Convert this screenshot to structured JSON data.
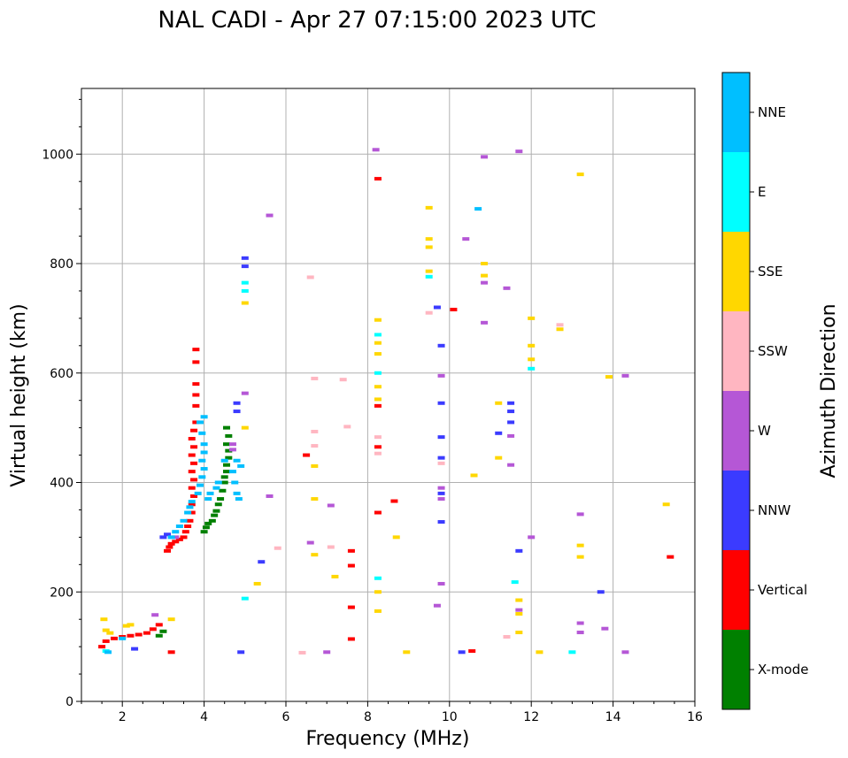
{
  "chart_data": {
    "type": "scatter",
    "title": "NAL CADI - Apr 27 07:15:00 2023 UTC",
    "xlabel": "Frequency (MHz)",
    "ylabel": "Virtual height (km)",
    "xlim": [
      1,
      16
    ],
    "ylim": [
      0,
      1120
    ],
    "xticks": [
      2,
      4,
      6,
      8,
      10,
      12,
      14,
      16
    ],
    "yticks": [
      0,
      200,
      400,
      600,
      800,
      1000
    ],
    "grid": true,
    "colorbar": {
      "label": "Azimuth Direction",
      "categories": [
        {
          "name": "X-mode",
          "color": "#008000"
        },
        {
          "name": "Vertical",
          "color": "#ff0000"
        },
        {
          "name": "NNW",
          "color": "#3b3bff"
        },
        {
          "name": "W",
          "color": "#b557d6"
        },
        {
          "name": "SSW",
          "color": "#ffb6c1"
        },
        {
          "name": "SSE",
          "color": "#ffd700"
        },
        {
          "name": "E",
          "color": "#00ffff"
        },
        {
          "name": "NNE",
          "color": "#00bfff"
        }
      ]
    },
    "series": [
      {
        "name": "X-mode",
        "points": [
          [
            2.9,
            120
          ],
          [
            3.0,
            128
          ],
          [
            4.0,
            310
          ],
          [
            4.05,
            318
          ],
          [
            4.1,
            325
          ],
          [
            4.2,
            330
          ],
          [
            4.25,
            340
          ],
          [
            4.3,
            348
          ],
          [
            4.35,
            360
          ],
          [
            4.4,
            370
          ],
          [
            4.45,
            385
          ],
          [
            4.5,
            400
          ],
          [
            4.5,
            410
          ],
          [
            4.55,
            420
          ],
          [
            4.55,
            432
          ],
          [
            4.6,
            445
          ],
          [
            4.6,
            458
          ],
          [
            4.55,
            470
          ],
          [
            4.6,
            485
          ],
          [
            4.55,
            500
          ]
        ]
      },
      {
        "name": "Vertical",
        "points": [
          [
            1.5,
            100
          ],
          [
            1.6,
            110
          ],
          [
            1.8,
            115
          ],
          [
            2.0,
            118
          ],
          [
            2.2,
            120
          ],
          [
            2.4,
            122
          ],
          [
            2.6,
            125
          ],
          [
            2.75,
            132
          ],
          [
            2.9,
            140
          ],
          [
            3.1,
            275
          ],
          [
            3.15,
            282
          ],
          [
            3.2,
            288
          ],
          [
            3.3,
            292
          ],
          [
            3.4,
            296
          ],
          [
            3.5,
            300
          ],
          [
            3.55,
            310
          ],
          [
            3.6,
            320
          ],
          [
            3.65,
            330
          ],
          [
            3.7,
            345
          ],
          [
            3.7,
            360
          ],
          [
            3.75,
            375
          ],
          [
            3.7,
            390
          ],
          [
            3.75,
            405
          ],
          [
            3.7,
            420
          ],
          [
            3.75,
            435
          ],
          [
            3.7,
            450
          ],
          [
            3.75,
            465
          ],
          [
            3.7,
            480
          ],
          [
            3.75,
            495
          ],
          [
            3.8,
            510
          ],
          [
            3.8,
            540
          ],
          [
            3.8,
            560
          ],
          [
            3.8,
            580
          ],
          [
            3.8,
            620
          ],
          [
            3.8,
            643
          ],
          [
            3.2,
            90
          ],
          [
            6.5,
            450
          ],
          [
            7.6,
            275
          ],
          [
            7.6,
            248
          ],
          [
            7.6,
            172
          ],
          [
            7.6,
            114
          ],
          [
            8.25,
            955
          ],
          [
            8.25,
            540
          ],
          [
            8.25,
            465
          ],
          [
            8.25,
            345
          ],
          [
            8.65,
            366
          ],
          [
            10.1,
            716
          ],
          [
            10.55,
            92
          ],
          [
            15.4,
            264
          ]
        ]
      },
      {
        "name": "NNW",
        "points": [
          [
            2.3,
            96
          ],
          [
            3.0,
            300
          ],
          [
            3.1,
            305
          ],
          [
            4.8,
            545
          ],
          [
            4.8,
            530
          ],
          [
            4.9,
            90
          ],
          [
            5.0,
            810
          ],
          [
            5.0,
            795
          ],
          [
            5.4,
            255
          ],
          [
            9.8,
            650
          ],
          [
            9.8,
            545
          ],
          [
            9.8,
            483
          ],
          [
            9.8,
            445
          ],
          [
            9.8,
            380
          ],
          [
            9.8,
            328
          ],
          [
            9.7,
            720
          ],
          [
            10.3,
            90
          ],
          [
            11.2,
            490
          ],
          [
            11.5,
            545
          ],
          [
            11.5,
            530
          ],
          [
            11.5,
            510
          ],
          [
            11.7,
            275
          ],
          [
            13.7,
            200
          ]
        ]
      },
      {
        "name": "W",
        "points": [
          [
            2.8,
            158
          ],
          [
            3.3,
            300
          ],
          [
            4.7,
            460
          ],
          [
            4.7,
            470
          ],
          [
            5.0,
            563
          ],
          [
            5.6,
            888
          ],
          [
            5.6,
            375
          ],
          [
            6.6,
            290
          ],
          [
            7.1,
            358
          ],
          [
            8.2,
            1008
          ],
          [
            9.8,
            595
          ],
          [
            9.8,
            390
          ],
          [
            9.8,
            370
          ],
          [
            9.8,
            215
          ],
          [
            9.7,
            175
          ],
          [
            10.4,
            845
          ],
          [
            10.85,
            995
          ],
          [
            10.85,
            765
          ],
          [
            10.85,
            692
          ],
          [
            11.4,
            755
          ],
          [
            11.5,
            485
          ],
          [
            11.5,
            432
          ],
          [
            11.7,
            1005
          ],
          [
            11.7,
            167
          ],
          [
            12.0,
            300
          ],
          [
            13.2,
            342
          ],
          [
            13.2,
            143
          ],
          [
            13.2,
            126
          ],
          [
            13.8,
            133
          ],
          [
            14.3,
            595
          ],
          [
            14.3,
            90
          ],
          [
            7.0,
            90
          ]
        ]
      },
      {
        "name": "SSW",
        "points": [
          [
            5.8,
            280
          ],
          [
            6.4,
            89
          ],
          [
            6.6,
            775
          ],
          [
            6.7,
            590
          ],
          [
            6.7,
            493
          ],
          [
            6.7,
            467
          ],
          [
            7.1,
            282
          ],
          [
            7.4,
            588
          ],
          [
            7.5,
            502
          ],
          [
            8.25,
            483
          ],
          [
            8.25,
            453
          ],
          [
            9.5,
            710
          ],
          [
            9.8,
            435
          ],
          [
            11.4,
            118
          ],
          [
            12.7,
            688
          ]
        ]
      },
      {
        "name": "SSE",
        "points": [
          [
            1.55,
            150
          ],
          [
            1.6,
            130
          ],
          [
            1.7,
            125
          ],
          [
            2.1,
            138
          ],
          [
            2.2,
            140
          ],
          [
            3.2,
            150
          ],
          [
            5.0,
            728
          ],
          [
            5.0,
            500
          ],
          [
            5.3,
            215
          ],
          [
            6.7,
            430
          ],
          [
            6.7,
            370
          ],
          [
            6.7,
            268
          ],
          [
            7.2,
            228
          ],
          [
            8.25,
            697
          ],
          [
            8.25,
            655
          ],
          [
            8.25,
            635
          ],
          [
            8.25,
            575
          ],
          [
            8.25,
            552
          ],
          [
            8.25,
            200
          ],
          [
            8.25,
            165
          ],
          [
            8.7,
            300
          ],
          [
            8.95,
            90
          ],
          [
            9.5,
            902
          ],
          [
            9.5,
            845
          ],
          [
            9.5,
            830
          ],
          [
            9.5,
            786
          ],
          [
            10.6,
            413
          ],
          [
            10.85,
            800
          ],
          [
            10.85,
            778
          ],
          [
            11.2,
            545
          ],
          [
            11.2,
            445
          ],
          [
            11.7,
            185
          ],
          [
            11.7,
            160
          ],
          [
            11.7,
            126
          ],
          [
            12.0,
            700
          ],
          [
            12.0,
            650
          ],
          [
            12.0,
            625
          ],
          [
            12.2,
            90
          ],
          [
            12.7,
            680
          ],
          [
            13.2,
            963
          ],
          [
            13.2,
            285
          ],
          [
            13.2,
            264
          ],
          [
            13.9,
            593
          ],
          [
            15.3,
            360
          ]
        ]
      },
      {
        "name": "E",
        "points": [
          [
            1.6,
            92
          ],
          [
            5.0,
            765
          ],
          [
            5.0,
            750
          ],
          [
            5.0,
            188
          ],
          [
            8.25,
            670
          ],
          [
            8.25,
            600
          ],
          [
            8.25,
            225
          ],
          [
            9.5,
            776
          ],
          [
            11.6,
            218
          ],
          [
            12.0,
            608
          ],
          [
            13.0,
            90
          ]
        ]
      },
      {
        "name": "NNE",
        "points": [
          [
            1.65,
            90
          ],
          [
            2.0,
            115
          ],
          [
            3.2,
            300
          ],
          [
            3.3,
            310
          ],
          [
            3.4,
            320
          ],
          [
            3.5,
            330
          ],
          [
            3.6,
            345
          ],
          [
            3.65,
            355
          ],
          [
            3.7,
            365
          ],
          [
            3.85,
            380
          ],
          [
            3.9,
            395
          ],
          [
            3.95,
            410
          ],
          [
            4.0,
            425
          ],
          [
            3.95,
            440
          ],
          [
            4.0,
            455
          ],
          [
            4.0,
            470
          ],
          [
            3.95,
            490
          ],
          [
            3.9,
            510
          ],
          [
            4.0,
            520
          ],
          [
            4.1,
            370
          ],
          [
            4.15,
            380
          ],
          [
            4.3,
            390
          ],
          [
            4.35,
            400
          ],
          [
            4.5,
            440
          ],
          [
            4.7,
            420
          ],
          [
            4.75,
            400
          ],
          [
            4.8,
            380
          ],
          [
            4.85,
            370
          ],
          [
            4.8,
            440
          ],
          [
            4.9,
            430
          ],
          [
            10.7,
            900
          ]
        ]
      }
    ]
  }
}
